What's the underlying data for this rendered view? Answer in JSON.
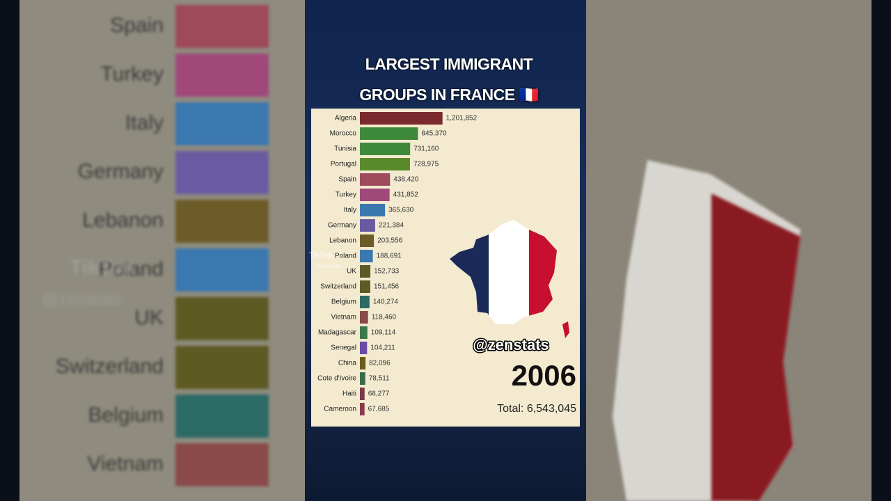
{
  "chart_data": {
    "type": "bar",
    "title": "LARGEST IMMIGRANT GROUPS IN FRANCE 🇫🇷",
    "categories": [
      "Algeria",
      "Morocco",
      "Tunisia",
      "Portugal",
      "Spain",
      "Turkey",
      "Italy",
      "Germany",
      "Lebanon",
      "Poland",
      "UK",
      "Switzerland",
      "Belgium",
      "Vietnam",
      "Madagascar",
      "Senegal",
      "China",
      "Cote d'Ivoire",
      "Haiti",
      "Cameroon"
    ],
    "values": [
      1201852,
      845370,
      731160,
      728975,
      438420,
      431852,
      365630,
      221384,
      203556,
      188691,
      152733,
      151456,
      140274,
      118460,
      109114,
      104211,
      82096,
      78511,
      68277,
      67685
    ],
    "value_labels": [
      "1,201,852",
      "845,370",
      "731,160",
      "728,975",
      "438,420",
      "431,852",
      "365,630",
      "221,384",
      "203,556",
      "188,691",
      "152,733",
      "151,456",
      "140,274",
      "118,460",
      "109,114",
      "104,211",
      "82,096",
      "78,511",
      "68,277",
      "67,685"
    ],
    "colors": [
      "#7b2a2e",
      "#3f8a3a",
      "#3f8a3a",
      "#5b8a2c",
      "#9e4a5c",
      "#a0487a",
      "#3b78b0",
      "#6a5aa2",
      "#6e5c28",
      "#3b78b0",
      "#5e5a24",
      "#5e5a24",
      "#2c6a66",
      "#8a4a4a",
      "#3a7a4a",
      "#6a4aa2",
      "#6e5a1c",
      "#3a6a4a",
      "#7a3a4a",
      "#8a3a4a"
    ],
    "xlim": [
      0,
      3200000
    ],
    "year": "2006",
    "total": "Total: 6,543,045",
    "handle": "@zenstats",
    "watermark": {
      "brand": "TikTok",
      "user": "@zenstats"
    }
  }
}
